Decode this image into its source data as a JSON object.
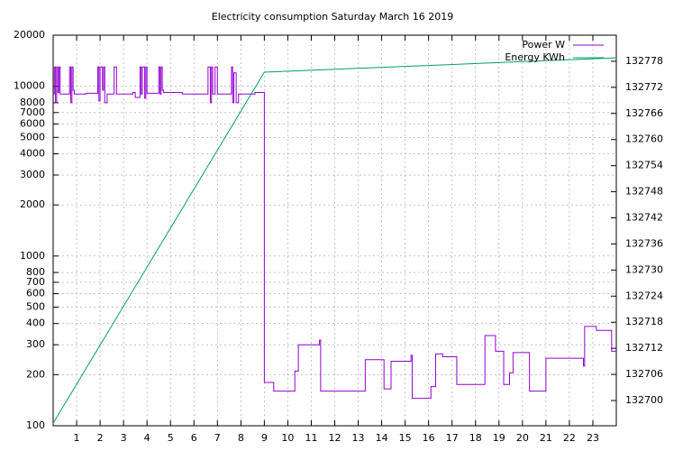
{
  "chart_data": {
    "type": "line",
    "title": "Electricity consumption Saturday March 16 2019",
    "xlim": [
      0,
      24
    ],
    "xticks": [
      1,
      2,
      3,
      4,
      5,
      6,
      7,
      8,
      9,
      10,
      11,
      12,
      13,
      14,
      15,
      16,
      17,
      18,
      19,
      20,
      21,
      22,
      23
    ],
    "ylim": [
      100,
      20000
    ],
    "yscale": "log",
    "yticks": [
      100,
      200,
      300,
      400,
      500,
      600,
      700,
      800,
      1000,
      2000,
      3000,
      4000,
      5000,
      6000,
      7000,
      8000,
      10000,
      20000
    ],
    "y2lim": [
      132694.2,
      132784
    ],
    "y2ticks": [
      132700,
      132706,
      132712,
      132718,
      132724,
      132730,
      132736,
      132742,
      132748,
      132754,
      132760,
      132766,
      132772,
      132778
    ],
    "grid": true,
    "legend": "top-right",
    "series": [
      {
        "name": "Power W",
        "color": "#9400d3",
        "step": true,
        "x": [
          0,
          0.05,
          0.1,
          0.15,
          0.2,
          0.25,
          0.3,
          0.7,
          0.75,
          0.8,
          0.85,
          0.9,
          1.4,
          1.9,
          1.95,
          2.0,
          2.1,
          2.15,
          2.2,
          2.3,
          2.6,
          2.7,
          3.4,
          3.5,
          3.7,
          3.75,
          3.8,
          3.9,
          3.95,
          4.0,
          4.5,
          4.55,
          4.6,
          4.65,
          4.7,
          5.5,
          6.6,
          6.7,
          6.75,
          6.8,
          6.9,
          7.0,
          7.6,
          7.65,
          7.7,
          7.8,
          7.9,
          8.6,
          9.0,
          9.4,
          10.3,
          10.45,
          11.35,
          11.4,
          13.3,
          14.1,
          14.4,
          15.25,
          15.3,
          16.1,
          16.3,
          16.6,
          17.2,
          18.4,
          18.85,
          19.2,
          19.45,
          19.6,
          20.3,
          21.0,
          22.6,
          22.65,
          23.15,
          23.8
        ],
        "values": [
          9000,
          13000,
          8000,
          13000,
          9200,
          13000,
          9000,
          13000,
          8000,
          13000,
          9500,
          9000,
          9100,
          13000,
          8200,
          13000,
          9500,
          13000,
          8000,
          9000,
          13000,
          9000,
          9200,
          8600,
          13000,
          9000,
          13000,
          8500,
          13000,
          9100,
          13000,
          9000,
          13000,
          9500,
          9200,
          9000,
          13000,
          8000,
          13000,
          9000,
          13000,
          9000,
          13000,
          8000,
          12000,
          8000,
          9000,
          9200,
          180,
          160,
          210,
          300,
          320,
          160,
          245,
          165,
          240,
          260,
          145,
          170,
          265,
          255,
          175,
          340,
          275,
          175,
          205,
          270,
          160,
          250,
          225,
          385,
          365,
          275
        ]
      },
      {
        "name": "Energy KWh",
        "color": "#009e73",
        "axis": "y2",
        "x": [
          0,
          9,
          24
        ],
        "values": [
          132694.8,
          132775.5,
          132778.8
        ]
      }
    ]
  }
}
